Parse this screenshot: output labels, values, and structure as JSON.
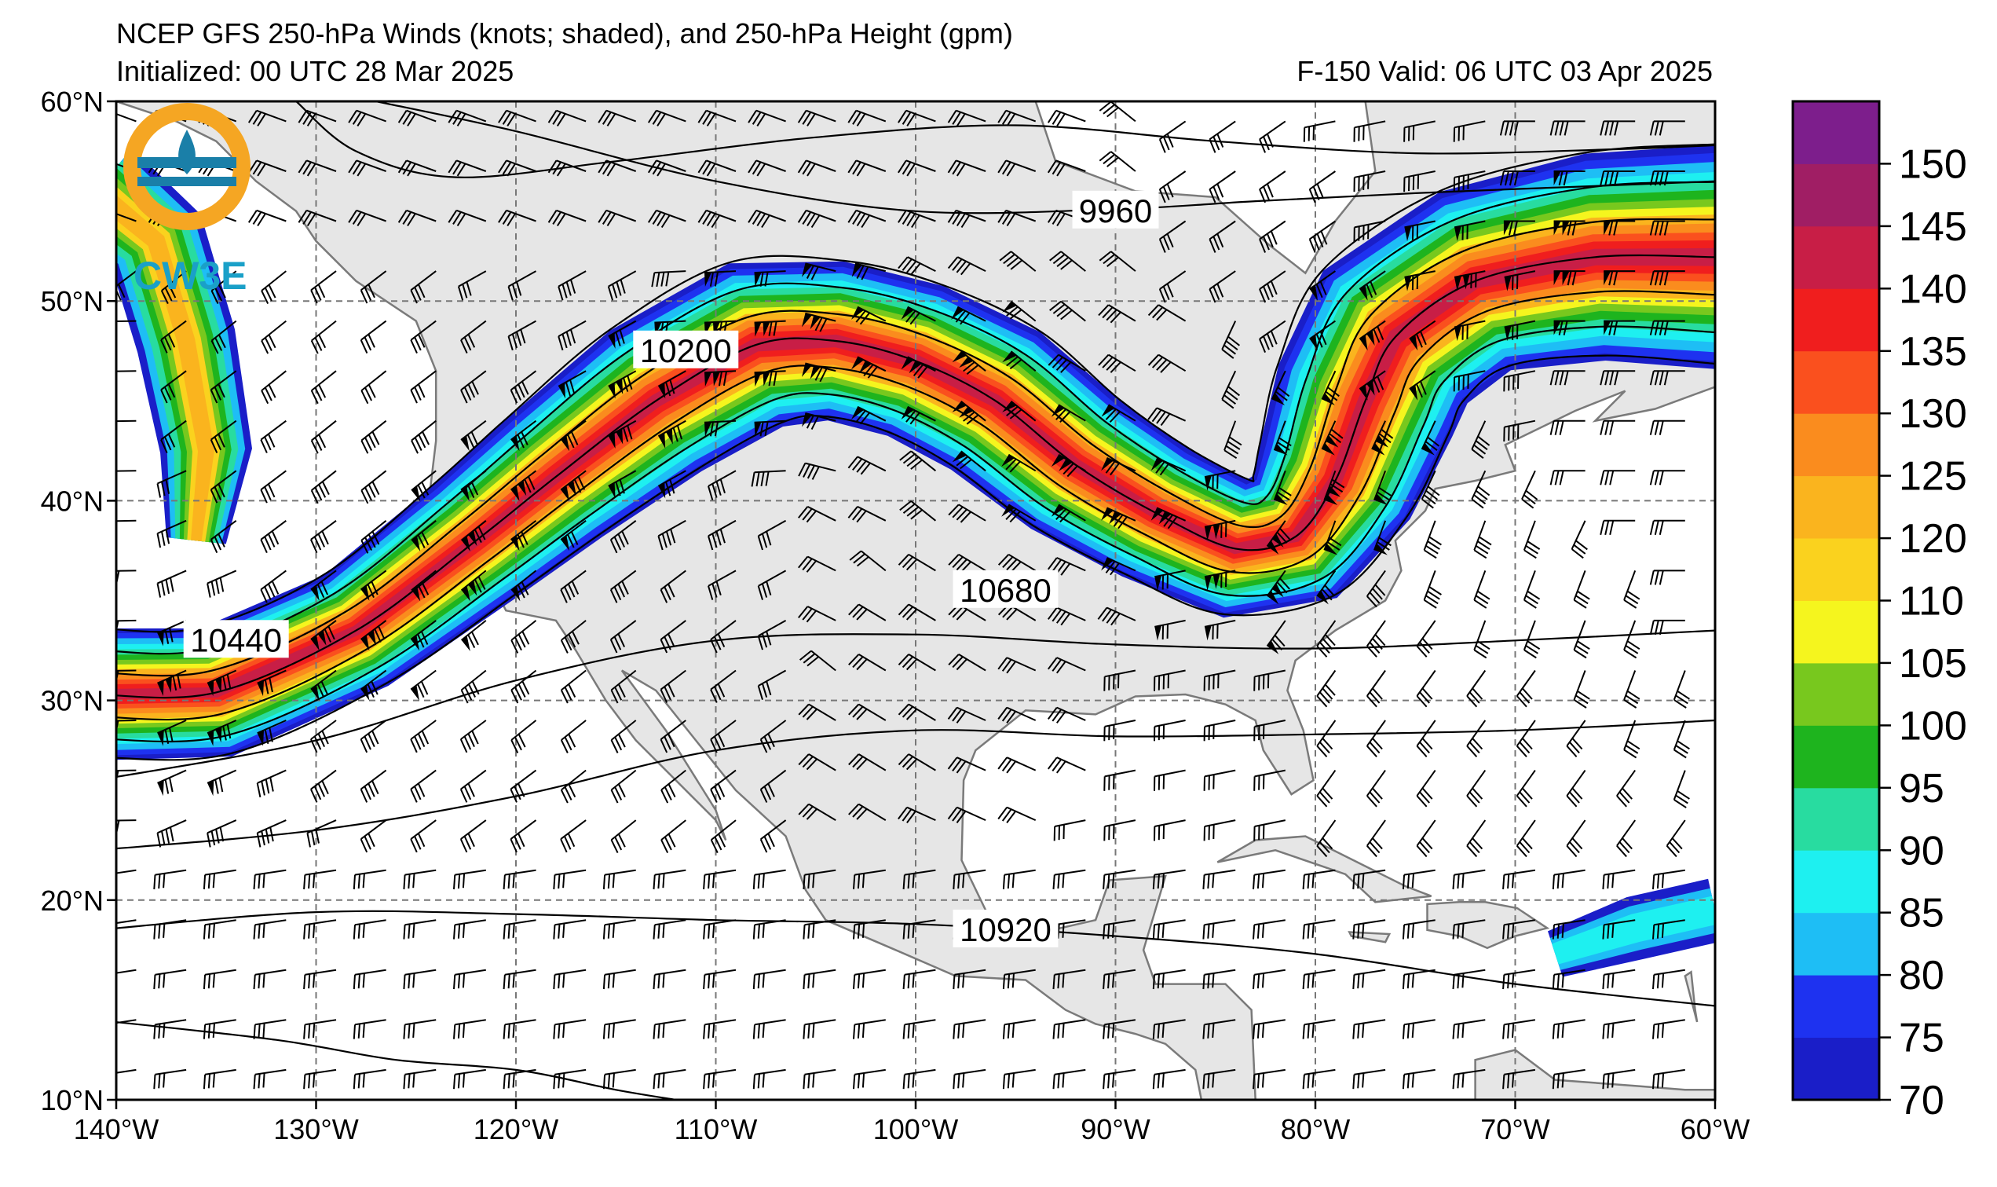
{
  "title": {
    "line1": "NCEP GFS 250-hPa Winds (knots; shaded), and 250-hPa Height (gpm)",
    "line2": "Initialized: 00 UTC 28 Mar 2025",
    "line3": "F-150  Valid: 06 UTC 03 Apr 2025"
  },
  "logo": {
    "text": "CW3E"
  },
  "map": {
    "lon_range": [
      -140,
      -60
    ],
    "lat_range": [
      10,
      60
    ],
    "lon_ticks": [
      {
        "value": -140,
        "label": "140°W"
      },
      {
        "value": -130,
        "label": "130°W"
      },
      {
        "value": -120,
        "label": "120°W"
      },
      {
        "value": -110,
        "label": "110°W"
      },
      {
        "value": -100,
        "label": "100°W"
      },
      {
        "value": -90,
        "label": "90°W"
      },
      {
        "value": -80,
        "label": "80°W"
      },
      {
        "value": -70,
        "label": "70°W"
      },
      {
        "value": -60,
        "label": "60°W"
      }
    ],
    "lat_ticks": [
      {
        "value": 10,
        "label": "10°N"
      },
      {
        "value": 20,
        "label": "20°N"
      },
      {
        "value": 30,
        "label": "30°N"
      },
      {
        "value": 40,
        "label": "40°N"
      },
      {
        "value": 50,
        "label": "50°N"
      },
      {
        "value": 60,
        "label": "60°N"
      }
    ],
    "land_color": "#e6e6e6",
    "coast_color": "#7a7a7a",
    "grid": "dashed gray",
    "contour_labels": [
      {
        "text": "9960",
        "lon": -90,
        "lat": 54.5
      },
      {
        "text": "10200",
        "lon": -111.5,
        "lat": 47.5
      },
      {
        "text": "10440",
        "lon": -134,
        "lat": 33.0
      },
      {
        "text": "10680",
        "lon": -95.5,
        "lat": 35.5
      },
      {
        "text": "10920",
        "lon": -95.5,
        "lat": 18.5
      }
    ]
  },
  "colorbar": {
    "label_values": [
      150,
      145,
      140,
      135,
      130,
      125,
      120,
      110,
      105,
      100,
      95,
      90,
      85,
      80,
      75,
      70
    ],
    "levels": [
      {
        "label": "70",
        "color": "#1a1ec8"
      },
      {
        "label": "75",
        "color": "#1e32f0"
      },
      {
        "label": "80",
        "color": "#1ebef5"
      },
      {
        "label": "85",
        "color": "#1ef0f0"
      },
      {
        "label": "90",
        "color": "#28dca0"
      },
      {
        "label": "95",
        "color": "#1eb41e"
      },
      {
        "label": "100",
        "color": "#78c81e"
      },
      {
        "label": "105",
        "color": "#f5f51e"
      },
      {
        "label": "110",
        "color": "#fad21e"
      },
      {
        "label": "120",
        "color": "#fab41e"
      },
      {
        "label": "125",
        "color": "#fa8c1e"
      },
      {
        "label": "130",
        "color": "#fa501e"
      },
      {
        "label": "135",
        "color": "#f01e1e"
      },
      {
        "label": "140",
        "color": "#c81e46"
      },
      {
        "label": "145",
        "color": "#a01e64"
      },
      {
        "label": "150",
        "color": "#7d1e8c"
      }
    ]
  }
}
